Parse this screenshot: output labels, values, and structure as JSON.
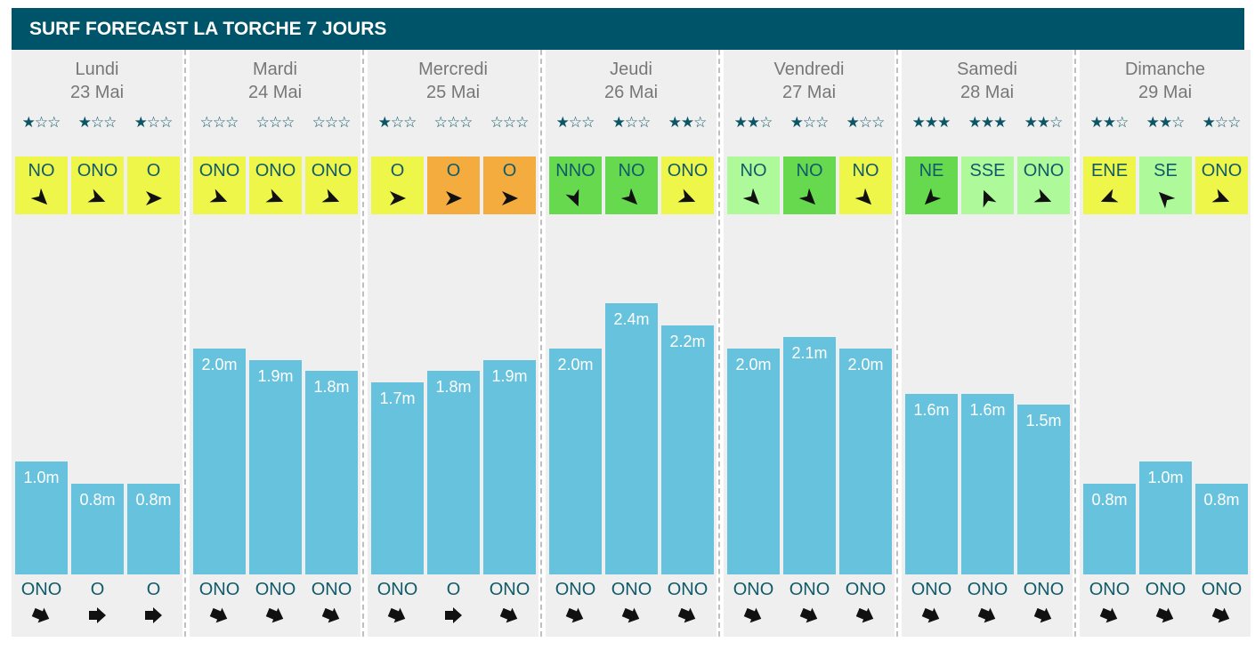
{
  "header": {
    "title": "SURF FORECAST LA TORCHE 7 JOURS"
  },
  "colors": {
    "header_bg": "#005469",
    "panel_bg": "#efefef",
    "bar": "#66c2dd",
    "star": "#0b5566",
    "wind_text": "#115a69",
    "wind_bg": {
      "yellow": "#eef64a",
      "orange": "#f5ac3e",
      "green": "#66d94e",
      "light-green": "#aefa9b"
    }
  },
  "chart_data": {
    "type": "bar",
    "ylim": [
      0,
      2.4
    ],
    "days": [
      {
        "name": "Lundi",
        "date": "23 Mai",
        "slots": [
          {
            "rating": 1,
            "wind": "NO",
            "wind_color": "yellow",
            "wind_icon": "arrow-icon",
            "height": 1.0,
            "label": "1.0m",
            "swell": "ONO"
          },
          {
            "rating": 1,
            "wind": "ONO",
            "wind_color": "yellow",
            "wind_icon": "arrow-icon",
            "height": 0.8,
            "label": "0.8m",
            "swell": "O"
          },
          {
            "rating": 1,
            "wind": "O",
            "wind_color": "yellow",
            "wind_icon": "arrow-icon",
            "height": 0.8,
            "label": "0.8m",
            "swell": "O"
          }
        ]
      },
      {
        "name": "Mardi",
        "date": "24 Mai",
        "slots": [
          {
            "rating": 0,
            "wind": "ONO",
            "wind_color": "yellow",
            "wind_icon": "arrow-icon",
            "height": 2.0,
            "label": "2.0m",
            "swell": "ONO"
          },
          {
            "rating": 0,
            "wind": "ONO",
            "wind_color": "yellow",
            "wind_icon": "arrow-icon",
            "height": 1.9,
            "label": "1.9m",
            "swell": "ONO"
          },
          {
            "rating": 0,
            "wind": "ONO",
            "wind_color": "yellow",
            "wind_icon": "arrow-icon",
            "height": 1.8,
            "label": "1.8m",
            "swell": "ONO"
          }
        ]
      },
      {
        "name": "Mercredi",
        "date": "25 Mai",
        "slots": [
          {
            "rating": 1,
            "wind": "O",
            "wind_color": "yellow",
            "wind_icon": "arrow-icon",
            "height": 1.7,
            "label": "1.7m",
            "swell": "ONO"
          },
          {
            "rating": 0,
            "wind": "O",
            "wind_color": "orange",
            "wind_icon": "arrow-icon",
            "height": 1.8,
            "label": "1.8m",
            "swell": "O"
          },
          {
            "rating": 0,
            "wind": "O",
            "wind_color": "orange",
            "wind_icon": "arrow-icon",
            "height": 1.9,
            "label": "1.9m",
            "swell": "ONO"
          }
        ]
      },
      {
        "name": "Jeudi",
        "date": "26 Mai",
        "slots": [
          {
            "rating": 1,
            "wind": "NNO",
            "wind_color": "green",
            "wind_icon": "arrow-icon",
            "height": 2.0,
            "label": "2.0m",
            "swell": "ONO"
          },
          {
            "rating": 1,
            "wind": "NO",
            "wind_color": "green",
            "wind_icon": "arrow-icon",
            "height": 2.4,
            "label": "2.4m",
            "swell": "ONO"
          },
          {
            "rating": 2,
            "wind": "ONO",
            "wind_color": "yellow",
            "wind_icon": "arrow-icon",
            "height": 2.2,
            "label": "2.2m",
            "swell": "ONO"
          }
        ]
      },
      {
        "name": "Vendredi",
        "date": "27 Mai",
        "slots": [
          {
            "rating": 2,
            "wind": "NO",
            "wind_color": "light-green",
            "wind_icon": "arrow-icon",
            "height": 2.0,
            "label": "2.0m",
            "swell": "ONO"
          },
          {
            "rating": 1,
            "wind": "NO",
            "wind_color": "green",
            "wind_icon": "arrow-icon",
            "height": 2.1,
            "label": "2.1m",
            "swell": "ONO"
          },
          {
            "rating": 1,
            "wind": "NO",
            "wind_color": "yellow",
            "wind_icon": "arrow-icon",
            "height": 2.0,
            "label": "2.0m",
            "swell": "ONO"
          }
        ]
      },
      {
        "name": "Samedi",
        "date": "28 Mai",
        "slots": [
          {
            "rating": 3,
            "wind": "NE",
            "wind_color": "green",
            "wind_icon": "arrow-icon",
            "height": 1.6,
            "label": "1.6m",
            "swell": "ONO"
          },
          {
            "rating": 3,
            "wind": "SSE",
            "wind_color": "light-green",
            "wind_icon": "arrow-icon",
            "height": 1.6,
            "label": "1.6m",
            "swell": "ONO"
          },
          {
            "rating": 2,
            "wind": "ONO",
            "wind_color": "light-green",
            "wind_icon": "arrow-icon",
            "height": 1.5,
            "label": "1.5m",
            "swell": "ONO"
          }
        ]
      },
      {
        "name": "Dimanche",
        "date": "29 Mai",
        "slots": [
          {
            "rating": 2,
            "wind": "ENE",
            "wind_color": "yellow",
            "wind_icon": "arrow-icon",
            "height": 0.8,
            "label": "0.8m",
            "swell": "ONO"
          },
          {
            "rating": 2,
            "wind": "SE",
            "wind_color": "light-green",
            "wind_icon": "arrow-icon",
            "height": 1.0,
            "label": "1.0m",
            "swell": "ONO"
          },
          {
            "rating": 1,
            "wind": "ONO",
            "wind_color": "yellow",
            "wind_icon": "arrow-icon",
            "height": 0.8,
            "label": "0.8m",
            "swell": "ONO"
          }
        ]
      }
    ]
  }
}
